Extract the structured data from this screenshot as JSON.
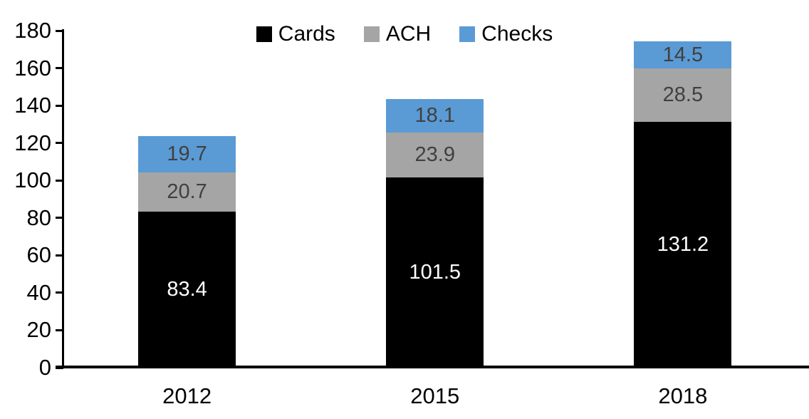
{
  "chart_data": {
    "type": "bar",
    "stacked": true,
    "title": "",
    "xlabel": "",
    "ylabel": "",
    "categories": [
      "2012",
      "2015",
      "2018"
    ],
    "series": [
      {
        "name": "Cards",
        "color": "#000000",
        "label_color": "#ffffff",
        "values": [
          83.4,
          101.5,
          131.2
        ]
      },
      {
        "name": "ACH",
        "color": "#a5a5a5",
        "label_color": "#404040",
        "values": [
          20.7,
          23.9,
          28.5
        ]
      },
      {
        "name": "Checks",
        "color": "#5b9bd5",
        "label_color": "#404040",
        "values": [
          19.7,
          18.1,
          14.5
        ]
      }
    ],
    "totals": [
      123.8,
      143.5,
      174.2
    ],
    "ylim": [
      0,
      180
    ],
    "yticks": [
      0,
      20,
      40,
      60,
      80,
      100,
      120,
      140,
      160,
      180
    ],
    "grid": false,
    "legend_position": "top",
    "legend_labels": [
      "Cards",
      "ACH",
      "Checks"
    ],
    "axis_color": "#000000"
  }
}
